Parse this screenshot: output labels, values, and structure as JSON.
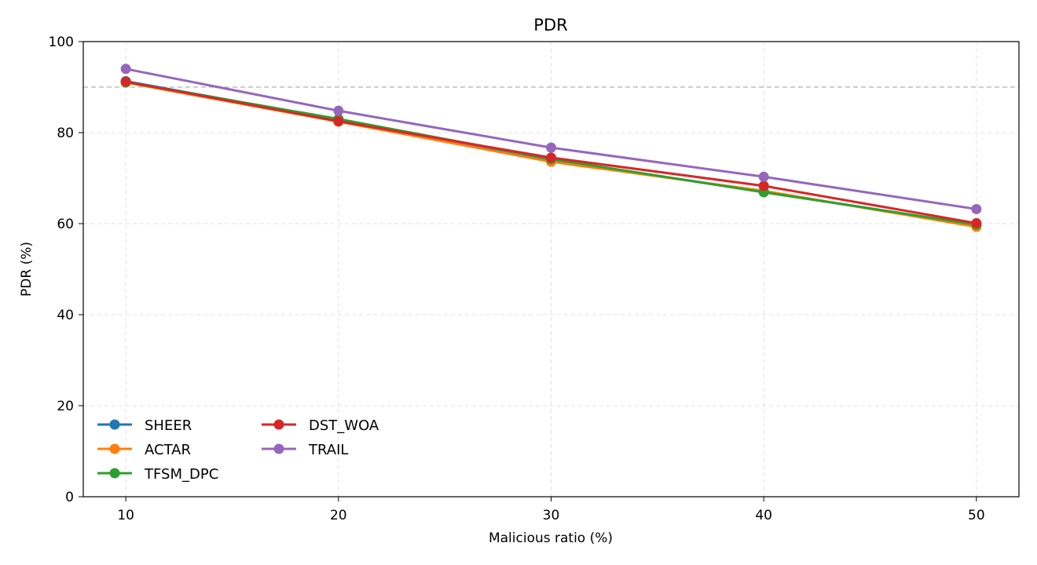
{
  "chart_data": {
    "type": "line",
    "title": "PDR",
    "xlabel": "Malicious ratio (%)",
    "ylabel": "PDR (%)",
    "x": [
      10,
      20,
      30,
      40,
      50
    ],
    "xlim": [
      8,
      52
    ],
    "ylim": [
      0,
      100
    ],
    "yticks": [
      0,
      20,
      40,
      60,
      80,
      100
    ],
    "reference_line": 90,
    "grid": true,
    "legend_position": "lower-left",
    "series": [
      {
        "name": "SHEER",
        "color": "#1f77b4",
        "values": [
          91.3,
          82.8,
          74.0,
          67.0,
          59.7
        ]
      },
      {
        "name": "ACTAR",
        "color": "#ff7f0e",
        "values": [
          91.0,
          82.4,
          73.6,
          67.2,
          59.3
        ]
      },
      {
        "name": "TFSM_DPC",
        "color": "#2ca02c",
        "values": [
          91.1,
          83.0,
          74.2,
          66.9,
          59.8
        ]
      },
      {
        "name": "DST_WOA",
        "color": "#d62728",
        "values": [
          91.2,
          82.5,
          74.5,
          68.3,
          60.1
        ]
      },
      {
        "name": "TRAIL",
        "color": "#9467bd",
        "values": [
          94.0,
          84.8,
          76.7,
          70.3,
          63.2
        ]
      }
    ]
  }
}
